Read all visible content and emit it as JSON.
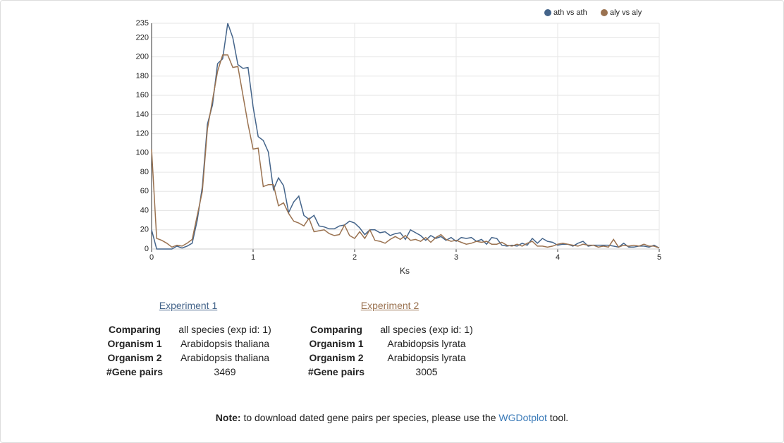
{
  "chart_data": {
    "type": "line",
    "xlabel": "Ks",
    "x": [
      0,
      0.05,
      0.1,
      0.15,
      0.2,
      0.25,
      0.3,
      0.35,
      0.4,
      0.45,
      0.5,
      0.55,
      0.6,
      0.65,
      0.7,
      0.75,
      0.8,
      0.85,
      0.9,
      0.95,
      1,
      1.05,
      1.1,
      1.15,
      1.2,
      1.25,
      1.3,
      1.35,
      1.4,
      1.45,
      1.5,
      1.55,
      1.6,
      1.65,
      1.7,
      1.75,
      1.8,
      1.85,
      1.9,
      1.95,
      2,
      2.05,
      2.1,
      2.15,
      2.2,
      2.25,
      2.3,
      2.35,
      2.4,
      2.45,
      2.5,
      2.55,
      2.6,
      2.65,
      2.7,
      2.75,
      2.8,
      2.85,
      2.9,
      2.95,
      3,
      3.05,
      3.1,
      3.15,
      3.2,
      3.25,
      3.3,
      3.35,
      3.4,
      3.45,
      3.5,
      3.55,
      3.6,
      3.65,
      3.7,
      3.75,
      3.8,
      3.85,
      3.9,
      3.95,
      4,
      4.05,
      4.1,
      4.15,
      4.2,
      4.25,
      4.3,
      4.35,
      4.4,
      4.45,
      4.5,
      4.55,
      4.6,
      4.65,
      4.7,
      4.75,
      4.8,
      4.85,
      4.9,
      4.95,
      5
    ],
    "series": [
      {
        "name": "ath vs ath",
        "color": "#44648a",
        "values": [
          20,
          0,
          0,
          0,
          0,
          3,
          1,
          3,
          6,
          30,
          65,
          130,
          150,
          193,
          198,
          235,
          220,
          192,
          188,
          189,
          148,
          117,
          113,
          101,
          62,
          74,
          66,
          38,
          49,
          55,
          35,
          31,
          35,
          24,
          23,
          21,
          21,
          24,
          25,
          29,
          27,
          22,
          15,
          20,
          20,
          17,
          18,
          14,
          16,
          17,
          10,
          20,
          17,
          14,
          9,
          14,
          11,
          13,
          9,
          12,
          8,
          12,
          11,
          12,
          8,
          10,
          5,
          12,
          11,
          4,
          3,
          4,
          3,
          6,
          4,
          11,
          6,
          11,
          8,
          7,
          4,
          5,
          5,
          3,
          6,
          8,
          3,
          4,
          4,
          4,
          4,
          3,
          2,
          6,
          2,
          2,
          3,
          3,
          2,
          4,
          1
        ]
      },
      {
        "name": "aly vs aly",
        "color": "#9a7250",
        "values": [
          104,
          11,
          9,
          6,
          2,
          4,
          3,
          6,
          10,
          35,
          60,
          125,
          155,
          185,
          202,
          202,
          189,
          190,
          160,
          130,
          104,
          105,
          65,
          67,
          67,
          45,
          48,
          37,
          29,
          27,
          24,
          32,
          18,
          19,
          20,
          16,
          14,
          15,
          25,
          14,
          11,
          18,
          11,
          20,
          9,
          8,
          6,
          10,
          13,
          10,
          14,
          9,
          10,
          8,
          12,
          7,
          12,
          15,
          10,
          8,
          9,
          7,
          5,
          6,
          8,
          7,
          8,
          5,
          5,
          7,
          4,
          3,
          5,
          3,
          6,
          8,
          3,
          3,
          2,
          3,
          5,
          6,
          5,
          4,
          3,
          5,
          4,
          4,
          2,
          3,
          2,
          10,
          2,
          4,
          3,
          4,
          3,
          5,
          3,
          3,
          1
        ]
      }
    ],
    "xlim": [
      0,
      5
    ],
    "xticks": [
      0,
      1,
      2,
      3,
      4,
      5
    ],
    "ylim": [
      0,
      235
    ],
    "yticks": [
      0,
      20,
      40,
      60,
      80,
      100,
      120,
      140,
      160,
      180,
      200,
      220,
      235
    ],
    "grid": true,
    "legend": "top-right"
  },
  "experiments": [
    {
      "title": "Experiment 1",
      "rows": [
        [
          "Comparing",
          "all species (exp id: 1)"
        ],
        [
          "Organism 1",
          "Arabidopsis thaliana"
        ],
        [
          "Organism 2",
          "Arabidopsis thaliana"
        ],
        [
          "#Gene pairs",
          3469
        ]
      ]
    },
    {
      "title": "Experiment 2",
      "rows": [
        [
          "Comparing",
          "all species (exp id: 1)"
        ],
        [
          "Organism 1",
          "Arabidopsis lyrata"
        ],
        [
          "Organism 2",
          "Arabidopsis lyrata"
        ],
        [
          "#Gene pairs",
          3005
        ]
      ]
    }
  ],
  "note": {
    "label": "Note:",
    "text": " to download dated gene pairs per species, please use the ",
    "link": "WGDotplot",
    "suffix": " tool."
  }
}
